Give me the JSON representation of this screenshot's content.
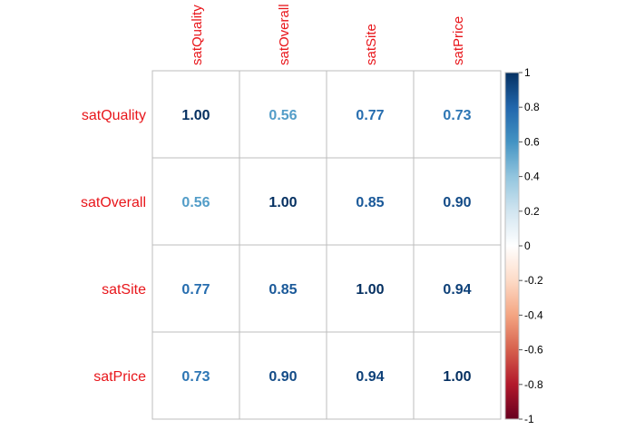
{
  "chart_data": {
    "type": "heatmap",
    "rows": [
      "satQuality",
      "satOverall",
      "satSite",
      "satPrice"
    ],
    "columns": [
      "satQuality",
      "satOverall",
      "satSite",
      "satPrice"
    ],
    "values": [
      [
        1.0,
        0.56,
        0.77,
        0.73
      ],
      [
        0.56,
        1.0,
        0.85,
        0.9
      ],
      [
        0.77,
        0.85,
        1.0,
        0.94
      ],
      [
        0.73,
        0.9,
        0.94,
        1.0
      ]
    ],
    "value_labels": [
      [
        "1.00",
        "0.56",
        "0.77",
        "0.73"
      ],
      [
        "0.56",
        "1.00",
        "0.85",
        "0.90"
      ],
      [
        "0.77",
        "0.85",
        "1.00",
        "0.94"
      ],
      [
        "0.73",
        "0.90",
        "0.94",
        "1.00"
      ]
    ],
    "colorbar": {
      "range": [
        -1,
        1
      ],
      "ticks": [
        "1",
        "0.8",
        "0.6",
        "0.4",
        "0.2",
        "0",
        "-0.2",
        "-0.4",
        "-0.6",
        "-0.8",
        "-1"
      ],
      "tick_values": [
        1,
        0.8,
        0.6,
        0.4,
        0.2,
        0,
        -0.2,
        -0.4,
        -0.6,
        -0.8,
        -1
      ]
    },
    "colors": {
      "label": "#e8161b",
      "grid": "#bdbdbd",
      "cell_background": "#ffffff",
      "gradient": [
        "#67001f",
        "#b2182b",
        "#d6604d",
        "#f4a582",
        "#fddbc7",
        "#ffffff",
        "#d1e5f0",
        "#92c5de",
        "#4393c3",
        "#2166ac",
        "#053061"
      ]
    }
  }
}
